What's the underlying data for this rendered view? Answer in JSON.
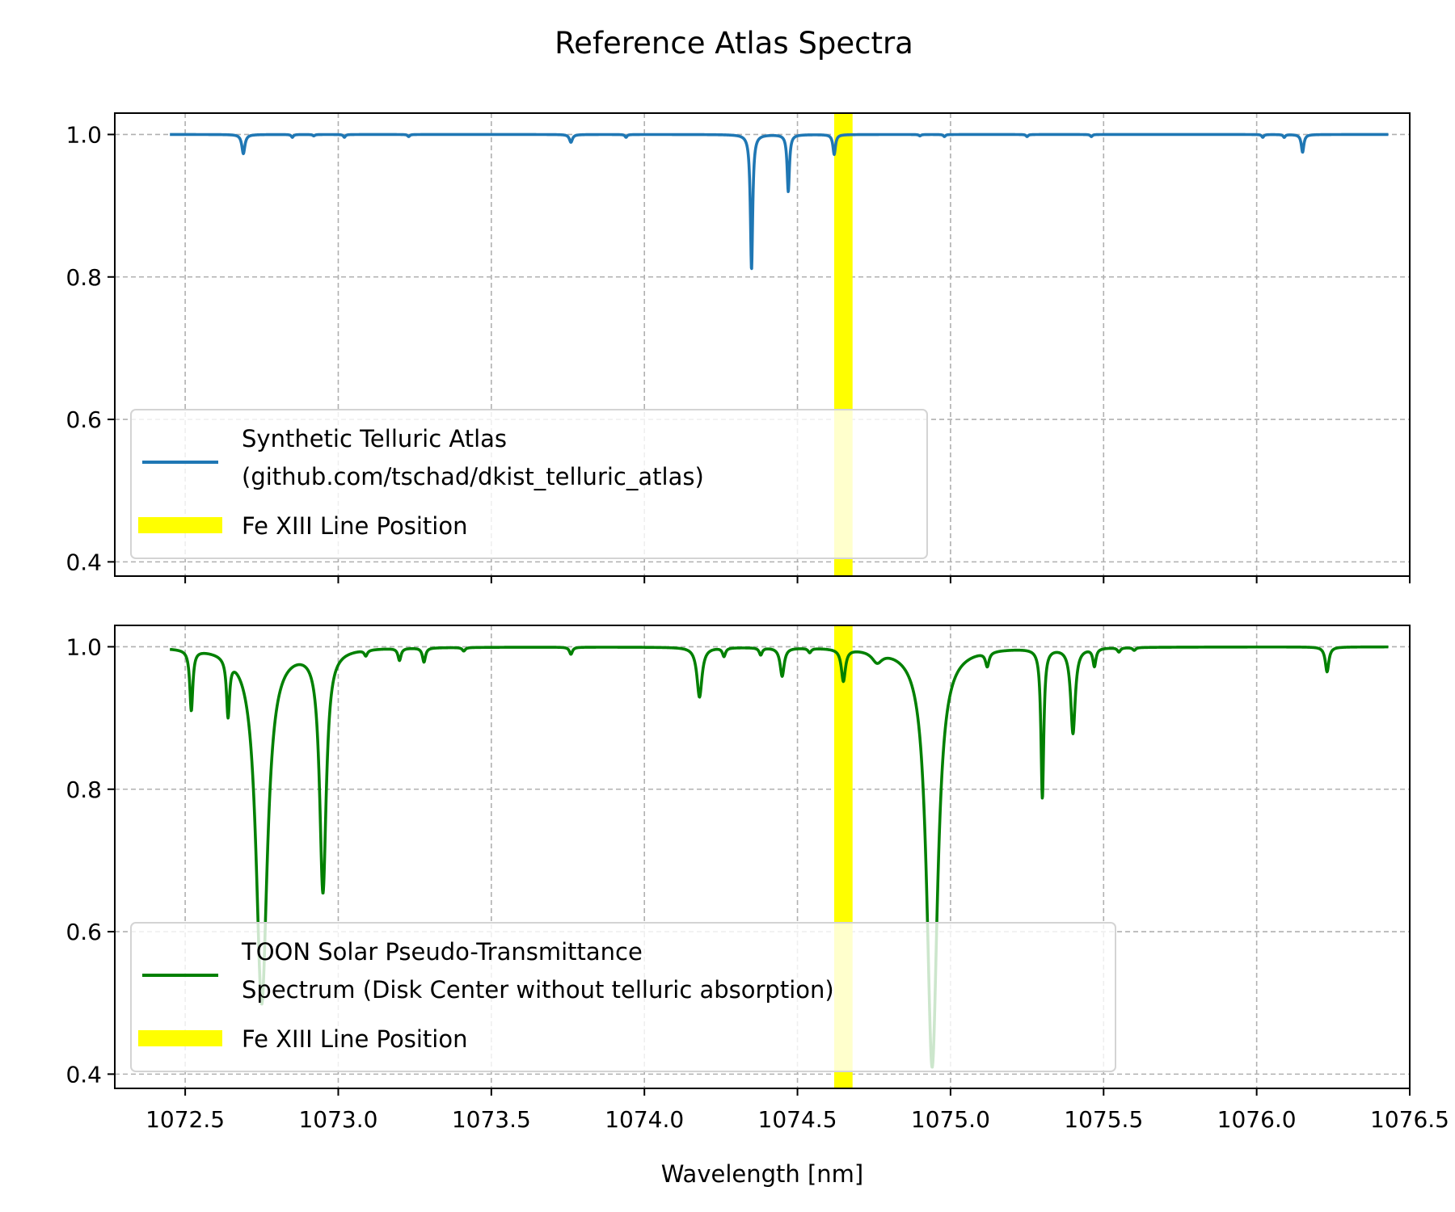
{
  "title": "Reference Atlas Spectra",
  "colors": {
    "telluric": "#1f77b4",
    "solar": "#008000",
    "line_marker": "#ffff00",
    "grid": "#b0b0b0"
  },
  "chart_data": [
    {
      "type": "line",
      "xlabel": "",
      "ylabel": "",
      "xlim": [
        1072.27,
        1076.5
      ],
      "ylim": [
        0.38,
        1.03
      ],
      "grid": true,
      "legend_placement": "lower-left",
      "xticks": [
        1072.5,
        1073.0,
        1073.5,
        1074.0,
        1074.5,
        1075.0,
        1075.5,
        1076.0,
        1076.5
      ],
      "yticks": [
        0.4,
        0.6,
        0.8,
        1.0
      ],
      "ytick_labels": [
        "0.4",
        "0.6",
        "0.8",
        "1.0"
      ],
      "fe_xiii_line": {
        "name": "Fe XIII Line Position",
        "x": 1074.65,
        "width": 0.06
      },
      "series": [
        {
          "name_line1": "Synthetic Telluric Atlas",
          "name_line2": "(github.com/tschad/dkist_telluric_atlas)",
          "color": "#1f77b4",
          "x_start": 1072.45,
          "x_end": 1076.43,
          "baseline": 1.0,
          "absorption_lines": [
            {
              "x": 1072.69,
              "depth": 0.027,
              "width": 0.006
            },
            {
              "x": 1072.85,
              "depth": 0.004,
              "width": 0.004
            },
            {
              "x": 1072.92,
              "depth": 0.002,
              "width": 0.004
            },
            {
              "x": 1073.02,
              "depth": 0.004,
              "width": 0.004
            },
            {
              "x": 1073.23,
              "depth": 0.003,
              "width": 0.004
            },
            {
              "x": 1073.76,
              "depth": 0.011,
              "width": 0.006
            },
            {
              "x": 1073.94,
              "depth": 0.004,
              "width": 0.004
            },
            {
              "x": 1074.35,
              "depth": 0.19,
              "width": 0.0045
            },
            {
              "x": 1074.47,
              "depth": 0.08,
              "width": 0.0045
            },
            {
              "x": 1074.62,
              "depth": 0.028,
              "width": 0.005
            },
            {
              "x": 1074.9,
              "depth": 0.002,
              "width": 0.004
            },
            {
              "x": 1074.98,
              "depth": 0.003,
              "width": 0.004
            },
            {
              "x": 1075.25,
              "depth": 0.003,
              "width": 0.004
            },
            {
              "x": 1075.46,
              "depth": 0.003,
              "width": 0.004
            },
            {
              "x": 1076.02,
              "depth": 0.004,
              "width": 0.004
            },
            {
              "x": 1076.09,
              "depth": 0.004,
              "width": 0.004
            },
            {
              "x": 1076.15,
              "depth": 0.025,
              "width": 0.005
            }
          ]
        },
        {
          "name_line1": "TOON Solar Pseudo-Transmittance",
          "name_line2": "Spectrum (Disk Center without telluric absorption)",
          "color": "#008000",
          "x_start": 1072.45,
          "x_end": 1076.43,
          "baseline": 1.0,
          "absorption_lines": [
            {
              "x": 1072.52,
              "depth": 0.085,
              "width": 0.006
            },
            {
              "x": 1072.64,
              "depth": 0.08,
              "width": 0.006
            },
            {
              "x": 1072.75,
              "depth": 0.5,
              "width": 0.022
            },
            {
              "x": 1072.95,
              "depth": 0.34,
              "width": 0.013
            },
            {
              "x": 1073.09,
              "depth": 0.008,
              "width": 0.006
            },
            {
              "x": 1073.2,
              "depth": 0.017,
              "width": 0.006
            },
            {
              "x": 1073.28,
              "depth": 0.02,
              "width": 0.006
            },
            {
              "x": 1073.41,
              "depth": 0.005,
              "width": 0.006
            },
            {
              "x": 1073.76,
              "depth": 0.01,
              "width": 0.006
            },
            {
              "x": 1074.18,
              "depth": 0.07,
              "width": 0.01
            },
            {
              "x": 1074.26,
              "depth": 0.012,
              "width": 0.006
            },
            {
              "x": 1074.38,
              "depth": 0.01,
              "width": 0.006
            },
            {
              "x": 1074.45,
              "depth": 0.04,
              "width": 0.008
            },
            {
              "x": 1074.54,
              "depth": 0.006,
              "width": 0.006
            },
            {
              "x": 1074.65,
              "depth": 0.045,
              "width": 0.008
            },
            {
              "x": 1074.76,
              "depth": 0.015,
              "width": 0.02
            },
            {
              "x": 1074.94,
              "depth": 0.59,
              "width": 0.021
            },
            {
              "x": 1075.12,
              "depth": 0.02,
              "width": 0.007
            },
            {
              "x": 1075.3,
              "depth": 0.21,
              "width": 0.0055
            },
            {
              "x": 1075.4,
              "depth": 0.12,
              "width": 0.009
            },
            {
              "x": 1075.47,
              "depth": 0.025,
              "width": 0.006
            },
            {
              "x": 1075.55,
              "depth": 0.006,
              "width": 0.006
            },
            {
              "x": 1075.6,
              "depth": 0.004,
              "width": 0.006
            },
            {
              "x": 1076.23,
              "depth": 0.035,
              "width": 0.007
            }
          ]
        }
      ]
    }
  ],
  "xaxis": {
    "label": "Wavelength [nm]",
    "tick_labels": [
      "1072.5",
      "1073.0",
      "1073.5",
      "1074.0",
      "1074.5",
      "1075.0",
      "1075.5",
      "1076.0",
      "1076.5"
    ]
  }
}
